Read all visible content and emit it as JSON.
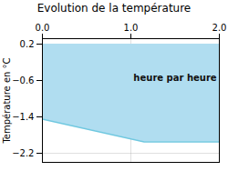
{
  "chart_data": {
    "type": "area",
    "title": "Evolution de la température",
    "ylabel": "Température en °C",
    "x": [
      0,
      1.15,
      2
    ],
    "values": [
      -1.45,
      -1.95,
      -1.95
    ],
    "top": [
      0.2,
      0.2,
      0.2
    ],
    "colors": [
      "#b0ddf0",
      "#70c8e0"
    ],
    "xlim": [
      0,
      2
    ],
    "ylim": [
      -2.4,
      0.32
    ],
    "xticks": [
      0,
      1,
      2
    ],
    "yticks": [
      0.2,
      -0.6,
      -1.4,
      -2.2
    ],
    "grid": true,
    "annotations": [
      {
        "text": "heure par heure",
        "x": 1.5,
        "y": -0.55
      }
    ]
  }
}
